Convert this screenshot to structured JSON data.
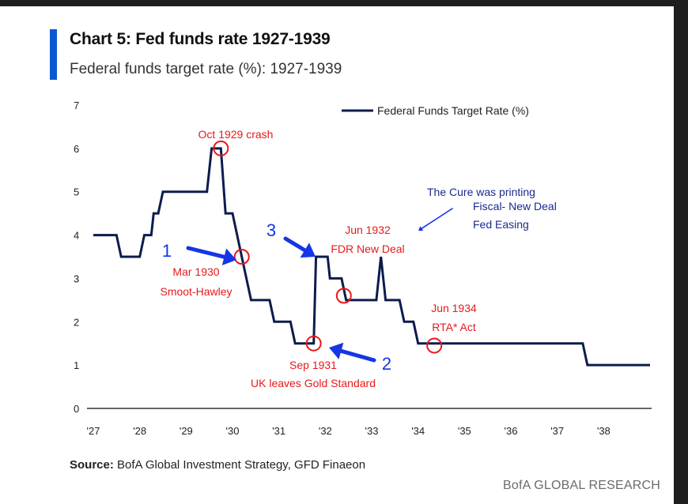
{
  "header": {
    "title": "Chart 5: Fed funds rate 1927-1939",
    "subtitle": "Federal funds target rate (%): 1927-1939"
  },
  "footer": {
    "source_label": "Source:",
    "source_text": " BofA Global Investment Strategy, GFD Finaeon",
    "brand": "BofA GLOBAL RESEARCH"
  },
  "colors": {
    "series": "#0d1c4d",
    "annotation_red": "#e8191b",
    "annotation_blue": "#1436e6",
    "accent": "#0a5bd3"
  },
  "chart_data": {
    "type": "line",
    "title": "Chart 5: Fed funds rate 1927-1939",
    "subtitle": "Federal funds target rate (%): 1927-1939",
    "xlabel": "",
    "ylabel": "",
    "xlim": [
      1927.0,
      1939.0
    ],
    "ylim": [
      0,
      7
    ],
    "yticks": [
      0,
      1,
      2,
      3,
      4,
      5,
      6,
      7
    ],
    "xticks": [
      {
        "value": 1927.0,
        "label": "'27"
      },
      {
        "value": 1928.0,
        "label": "'28"
      },
      {
        "value": 1929.0,
        "label": "'29"
      },
      {
        "value": 1930.0,
        "label": "'30"
      },
      {
        "value": 1931.0,
        "label": "'31"
      },
      {
        "value": 1932.0,
        "label": "'32"
      },
      {
        "value": 1933.0,
        "label": "'33"
      },
      {
        "value": 1934.0,
        "label": "'34"
      },
      {
        "value": 1935.0,
        "label": "'35"
      },
      {
        "value": 1936.0,
        "label": "'36"
      },
      {
        "value": 1937.0,
        "label": "'37"
      },
      {
        "value": 1938.0,
        "label": "'38"
      }
    ],
    "grid": false,
    "legend": {
      "position": "top-right"
    },
    "series": [
      {
        "name": "Federal Funds Target Rate (%)",
        "points": [
          [
            1927.0,
            4.0
          ],
          [
            1927.5,
            4.0
          ],
          [
            1927.6,
            3.5
          ],
          [
            1928.0,
            3.5
          ],
          [
            1928.1,
            4.0
          ],
          [
            1928.25,
            4.0
          ],
          [
            1928.3,
            4.5
          ],
          [
            1928.4,
            4.5
          ],
          [
            1928.5,
            5.0
          ],
          [
            1929.45,
            5.0
          ],
          [
            1929.55,
            6.0
          ],
          [
            1929.75,
            6.0
          ],
          [
            1929.85,
            4.5
          ],
          [
            1930.0,
            4.5
          ],
          [
            1930.2,
            3.5
          ],
          [
            1930.4,
            2.5
          ],
          [
            1930.8,
            2.5
          ],
          [
            1930.9,
            2.0
          ],
          [
            1931.25,
            2.0
          ],
          [
            1931.35,
            1.5
          ],
          [
            1931.75,
            1.5
          ],
          [
            1931.8,
            3.5
          ],
          [
            1932.05,
            3.5
          ],
          [
            1932.1,
            3.0
          ],
          [
            1932.35,
            3.0
          ],
          [
            1932.45,
            2.5
          ],
          [
            1933.1,
            2.5
          ],
          [
            1933.2,
            3.5
          ],
          [
            1933.3,
            2.5
          ],
          [
            1933.6,
            2.5
          ],
          [
            1933.7,
            2.0
          ],
          [
            1933.9,
            2.0
          ],
          [
            1934.0,
            1.5
          ],
          [
            1937.55,
            1.5
          ],
          [
            1937.65,
            1.0
          ],
          [
            1939.0,
            1.0
          ]
        ]
      }
    ],
    "annotations": [
      {
        "id": "crash",
        "text": [
          "Oct 1929 crash"
        ],
        "x": 1929.75,
        "y": 6.0
      },
      {
        "id": "smoot",
        "text": [
          "Mar 1930",
          "Smoot-Hawley"
        ],
        "x": 1930.2,
        "y": 3.5
      },
      {
        "id": "gold",
        "text": [
          "Sep 1931",
          "UK leaves Gold Standard"
        ],
        "x": 1931.75,
        "y": 1.5
      },
      {
        "id": "fdr",
        "text": [
          "Jun 1932",
          "FDR New Deal"
        ],
        "x": 1932.4,
        "y": 2.6
      },
      {
        "id": "rta",
        "text": [
          "Jun 1934",
          "RTA* Act"
        ],
        "x": 1934.35,
        "y": 1.45
      }
    ],
    "blue_notes": {
      "num1": "1",
      "num2": "2",
      "num3": "3",
      "cure": "The Cure was printing",
      "fiscal": "Fiscal- New Deal",
      "easing": "Fed Easing"
    }
  }
}
